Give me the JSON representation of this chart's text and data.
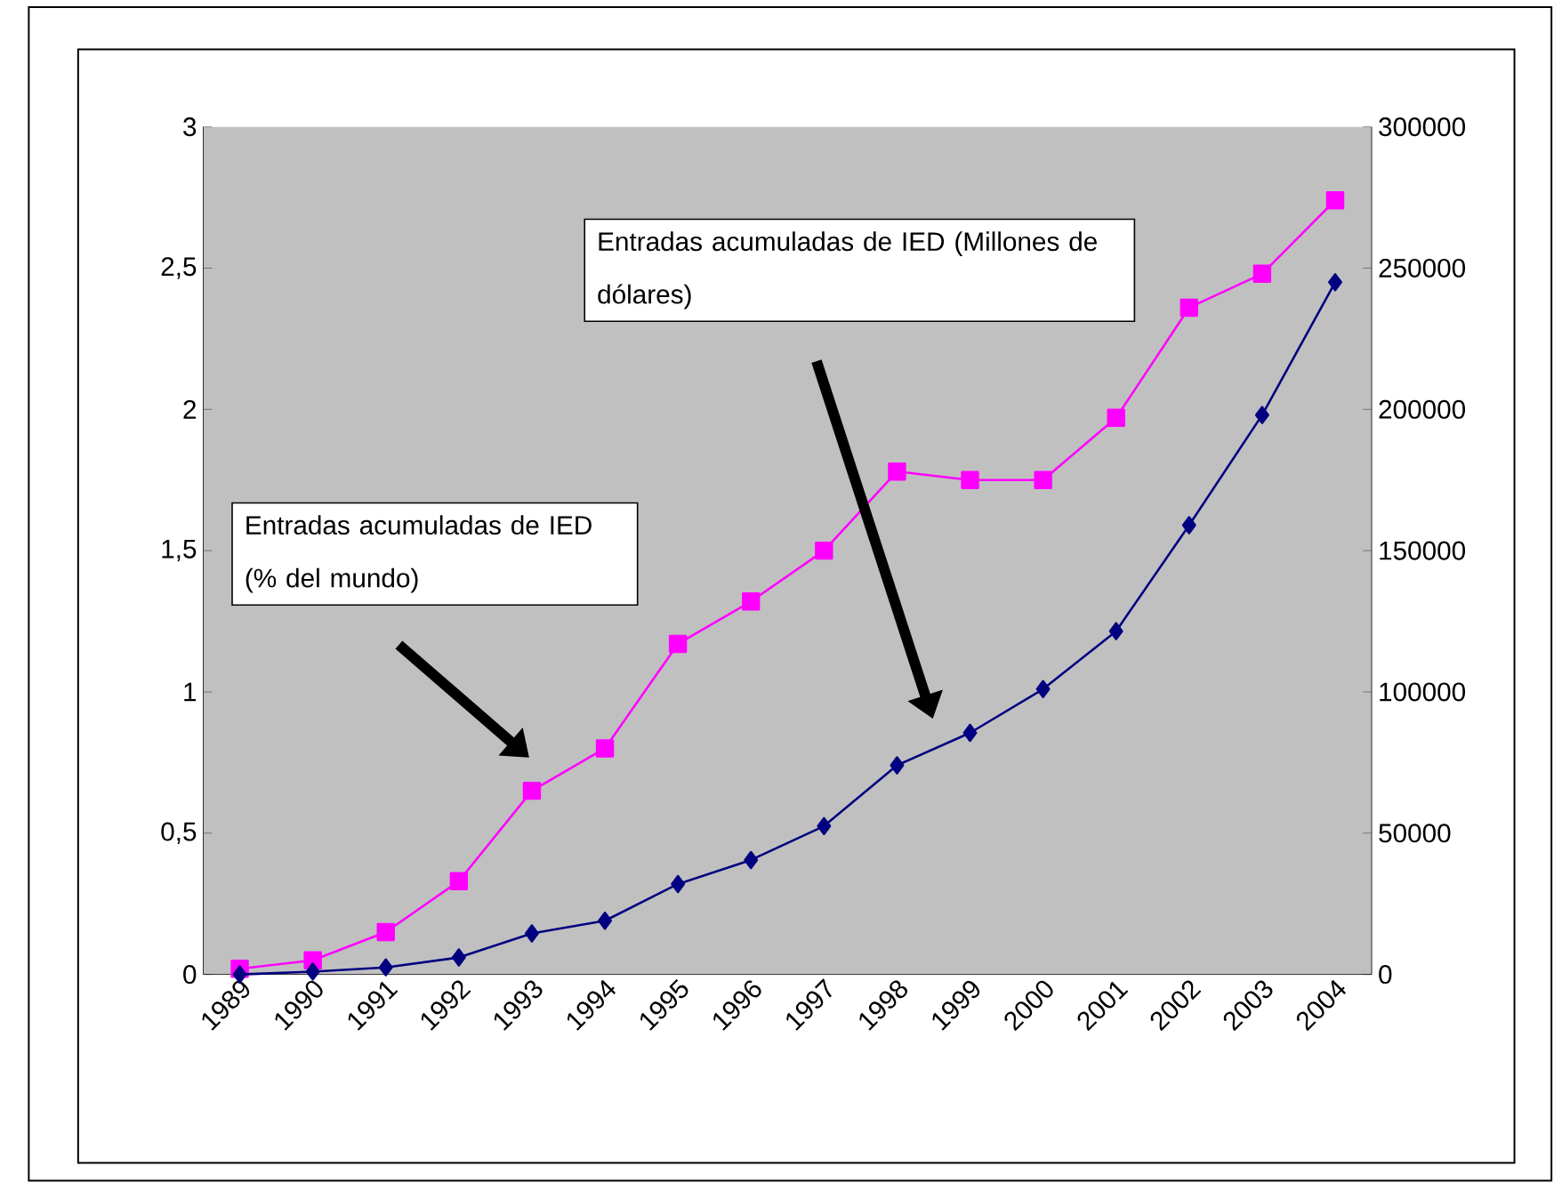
{
  "chart_data": {
    "type": "line",
    "categories": [
      "1989",
      "1990",
      "1991",
      "1992",
      "1993",
      "1994",
      "1995",
      "1996",
      "1997",
      "1998",
      "1999",
      "2000",
      "2001",
      "2002",
      "2003",
      "2004"
    ],
    "series": [
      {
        "color": "#ff00ff",
        "marker": "square",
        "values": [
          0.02,
          0.05,
          0.15,
          0.33,
          0.65,
          0.8,
          1.17,
          1.32,
          1.5,
          1.78,
          1.75,
          1.75,
          1.97,
          2.36,
          2.48,
          2.74
        ]
      },
      {
        "color": "#000080",
        "marker": "diamond",
        "axis": "y2",
        "values": [
          0,
          1000,
          2500,
          6000,
          14500,
          19000,
          32000,
          40500,
          52500,
          74000,
          85500,
          101000,
          121500,
          159000,
          198000,
          245000
        ]
      }
    ],
    "ylim": [
      0,
      3
    ],
    "yticks": [
      0,
      {
        "value": 0.5,
        "label": "0,5"
      },
      1,
      {
        "value": 1.5,
        "label": "1,5"
      },
      2,
      {
        "value": 2.5,
        "label": "2,5"
      },
      3
    ],
    "y2lim": [
      0,
      300000
    ],
    "y2ticks": [
      0,
      50000,
      100000,
      150000,
      200000,
      250000,
      300000
    ],
    "annotations": [
      "Entradas acumuladas de IED (Millones de dólares)",
      "Entradas acumuladas de IED (% del mundo)"
    ]
  }
}
